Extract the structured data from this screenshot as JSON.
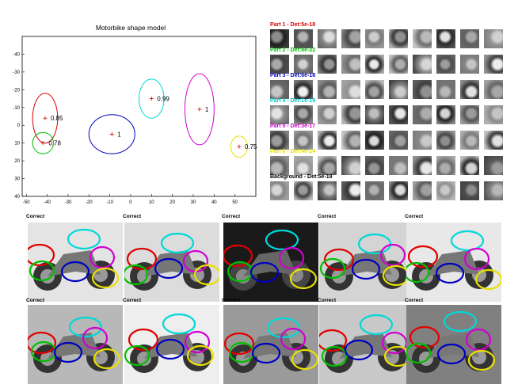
{
  "chart_data": {
    "type": "scatter",
    "title": "Motorbike shape model",
    "xlabel": "",
    "ylabel": "",
    "xlim": [
      -52,
      60
    ],
    "ylim": [
      -50,
      40
    ],
    "y_inverted": true,
    "xticks": [
      -50,
      -40,
      -30,
      -20,
      -10,
      0,
      10,
      20,
      30,
      40,
      50
    ],
    "yticks": [
      -40,
      -30,
      -20,
      -10,
      0,
      10,
      20,
      30,
      40
    ],
    "grid": false,
    "parts": [
      {
        "cx": -41,
        "cy": -4,
        "rx": 6,
        "ry": 14,
        "color": "#e00000",
        "label": "0.85"
      },
      {
        "cx": -42,
        "cy": 10,
        "rx": 5,
        "ry": 6,
        "color": "#00c000",
        "label": "0.78"
      },
      {
        "cx": -9,
        "cy": 5,
        "rx": 11,
        "ry": 11,
        "color": "#0000c0",
        "label": "1"
      },
      {
        "cx": 10,
        "cy": -15,
        "rx": 6,
        "ry": 11,
        "color": "#00d8d8",
        "label": "0.99"
      },
      {
        "cx": 33,
        "cy": -9,
        "rx": 7,
        "ry": 20,
        "color": "#d000d0",
        "label": "1"
      },
      {
        "cx": 52,
        "cy": 12,
        "rx": 4,
        "ry": 6,
        "color": "#e8e000",
        "label": "0.75"
      }
    ]
  },
  "part_panel": [
    {
      "label": "Part 1 - Det:5e-18",
      "color": "#e00000"
    },
    {
      "label": "Part 2 - Det:8e-22",
      "color": "#00c000"
    },
    {
      "label": "Part 3 - Det:6e-18",
      "color": "#0000c0"
    },
    {
      "label": "Part 4 - Det:1e-19",
      "color": "#00c8c8"
    },
    {
      "label": "Part 5 - Det:3e-17",
      "color": "#d000d0"
    },
    {
      "label": "Part 6 - Det:4e-24",
      "color": "#e8e000"
    },
    {
      "label": "Background - Det:5e-19",
      "color": "#000000"
    }
  ],
  "detections": {
    "label": "Correct",
    "count": 10
  }
}
